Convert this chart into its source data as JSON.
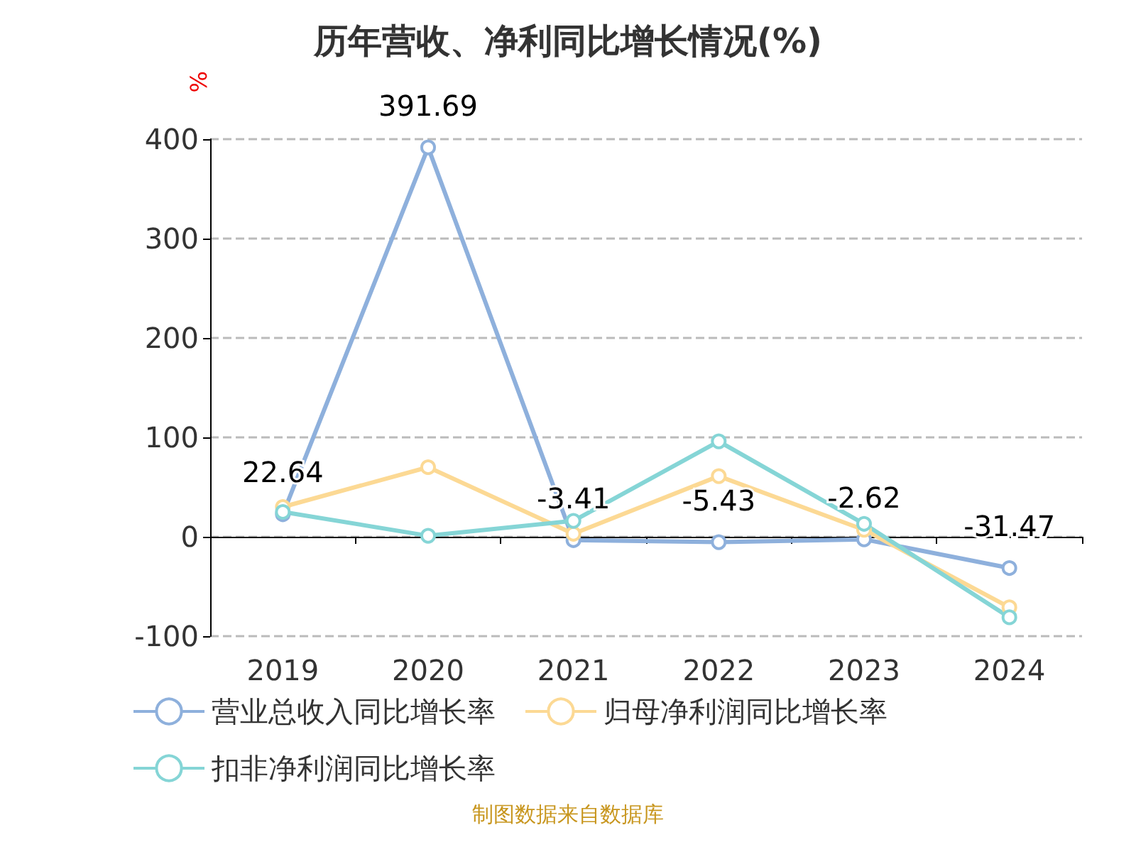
{
  "chart_data": {
    "type": "line",
    "title": "历年营收、净利同比增长情况(%)",
    "ylabel": "%",
    "categories": [
      "2019",
      "2020",
      "2021",
      "2022",
      "2023",
      "2024"
    ],
    "series": [
      {
        "name": "营业总收入同比增长率",
        "color": "#8eb0dc",
        "values": [
          22.64,
          391.69,
          -3.41,
          -5.43,
          -2.62,
          -31.47
        ],
        "value_labels": [
          "22.64",
          "391.69",
          "-3.41",
          "-5.43",
          "-2.62",
          "-31.47"
        ]
      },
      {
        "name": "归母净利润同比增长率",
        "color": "#fcd994",
        "values": [
          30,
          70,
          3,
          61,
          7,
          -71
        ]
      },
      {
        "name": "扣非净利润同比增长率",
        "color": "#85d5d6",
        "values": [
          25,
          1,
          16,
          96,
          13,
          -81
        ]
      }
    ],
    "ylim": [
      -100,
      400
    ],
    "yticks": [
      -100,
      0,
      100,
      200,
      300,
      400
    ],
    "grid": "y",
    "legend": "bottom",
    "marker": "circle",
    "line_style": "solid",
    "annotations": [
      "制图数据来自数据库"
    ]
  }
}
